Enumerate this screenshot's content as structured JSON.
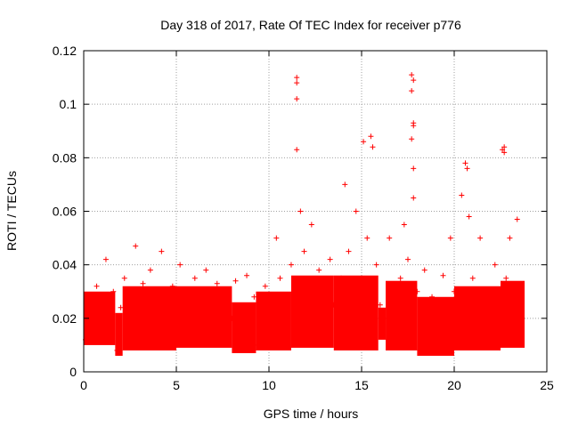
{
  "chart_data": {
    "type": "scatter",
    "title": "Day 318 of 2017, Rate Of TEC Index for receiver p776",
    "xlabel": "GPS time / hours",
    "ylabel": "ROTI / TECUs",
    "xlim": [
      0,
      25
    ],
    "ylim": [
      0,
      0.12
    ],
    "xticks": [
      0,
      5,
      10,
      15,
      20,
      25
    ],
    "xtick_labels": [
      "0",
      "5",
      "10",
      "15",
      "20",
      "25"
    ],
    "yticks": [
      0,
      0.02,
      0.04,
      0.06,
      0.08,
      0.1,
      0.12
    ],
    "ytick_labels": [
      "0",
      "0.02",
      "0.04",
      "0.06",
      "0.08",
      "0.1",
      "0.12"
    ],
    "grid": true,
    "marker": "+",
    "series_color": "#ff0000",
    "series": [
      {
        "name": "ROTI",
        "points": [
          [
            0.1,
            0.012
          ],
          [
            0.3,
            0.028
          ],
          [
            0.5,
            0.02
          ],
          [
            0.7,
            0.032
          ],
          [
            0.9,
            0.015
          ],
          [
            1.1,
            0.022
          ],
          [
            1.2,
            0.042
          ],
          [
            1.4,
            0.018
          ],
          [
            1.6,
            0.03
          ],
          [
            1.8,
            0.008
          ],
          [
            2.0,
            0.024
          ],
          [
            2.2,
            0.035
          ],
          [
            2.4,
            0.016
          ],
          [
            2.6,
            0.028
          ],
          [
            2.8,
            0.047
          ],
          [
            3.0,
            0.02
          ],
          [
            3.2,
            0.033
          ],
          [
            3.4,
            0.012
          ],
          [
            3.6,
            0.038
          ],
          [
            3.8,
            0.025
          ],
          [
            4.0,
            0.018
          ],
          [
            4.2,
            0.045
          ],
          [
            4.4,
            0.028
          ],
          [
            4.6,
            0.015
          ],
          [
            4.8,
            0.032
          ],
          [
            5.0,
            0.022
          ],
          [
            5.2,
            0.04
          ],
          [
            5.4,
            0.012
          ],
          [
            5.6,
            0.03
          ],
          [
            5.8,
            0.02
          ],
          [
            6.0,
            0.035
          ],
          [
            6.2,
            0.016
          ],
          [
            6.4,
            0.028
          ],
          [
            6.6,
            0.038
          ],
          [
            6.8,
            0.022
          ],
          [
            7.0,
            0.014
          ],
          [
            7.2,
            0.033
          ],
          [
            7.4,
            0.026
          ],
          [
            7.6,
            0.018
          ],
          [
            7.8,
            0.03
          ],
          [
            8.0,
            0.02
          ],
          [
            8.2,
            0.034
          ],
          [
            8.4,
            0.012
          ],
          [
            8.6,
            0.024
          ],
          [
            8.8,
            0.036
          ],
          [
            9.0,
            0.018
          ],
          [
            9.2,
            0.028
          ],
          [
            9.4,
            0.01
          ],
          [
            9.6,
            0.022
          ],
          [
            9.8,
            0.032
          ],
          [
            10.0,
            0.016
          ],
          [
            10.2,
            0.025
          ],
          [
            10.4,
            0.05
          ],
          [
            10.6,
            0.035
          ],
          [
            10.8,
            0.02
          ],
          [
            11.0,
            0.028
          ],
          [
            11.2,
            0.04
          ],
          [
            11.5,
            0.11
          ],
          [
            11.5,
            0.108
          ],
          [
            11.5,
            0.102
          ],
          [
            11.5,
            0.083
          ],
          [
            11.7,
            0.06
          ],
          [
            11.9,
            0.045
          ],
          [
            12.1,
            0.03
          ],
          [
            12.3,
            0.055
          ],
          [
            12.5,
            0.022
          ],
          [
            12.7,
            0.038
          ],
          [
            12.9,
            0.018
          ],
          [
            13.1,
            0.03
          ],
          [
            13.3,
            0.042
          ],
          [
            13.5,
            0.025
          ],
          [
            13.7,
            0.015
          ],
          [
            13.9,
            0.035
          ],
          [
            14.1,
            0.07
          ],
          [
            14.3,
            0.045
          ],
          [
            14.5,
            0.02
          ],
          [
            14.7,
            0.06
          ],
          [
            14.9,
            0.03
          ],
          [
            15.1,
            0.086
          ],
          [
            15.3,
            0.05
          ],
          [
            15.5,
            0.088
          ],
          [
            15.6,
            0.084
          ],
          [
            15.8,
            0.04
          ],
          [
            16.0,
            0.025
          ],
          [
            16.2,
            0.02
          ],
          [
            16.5,
            0.05
          ],
          [
            16.7,
            0.03
          ],
          [
            16.9,
            0.018
          ],
          [
            17.1,
            0.035
          ],
          [
            17.3,
            0.055
          ],
          [
            17.5,
            0.042
          ],
          [
            17.7,
            0.111
          ],
          [
            17.8,
            0.109
          ],
          [
            17.7,
            0.105
          ],
          [
            17.8,
            0.093
          ],
          [
            17.8,
            0.092
          ],
          [
            17.7,
            0.087
          ],
          [
            17.8,
            0.076
          ],
          [
            17.8,
            0.065
          ],
          [
            18.0,
            0.03
          ],
          [
            18.2,
            0.02
          ],
          [
            18.4,
            0.038
          ],
          [
            18.6,
            0.015
          ],
          [
            18.8,
            0.028
          ],
          [
            19.0,
            0.012
          ],
          [
            19.2,
            0.024
          ],
          [
            19.4,
            0.036
          ],
          [
            19.6,
            0.02
          ],
          [
            19.8,
            0.05
          ],
          [
            20.0,
            0.03
          ],
          [
            20.2,
            0.018
          ],
          [
            20.4,
            0.066
          ],
          [
            20.6,
            0.078
          ],
          [
            20.7,
            0.076
          ],
          [
            20.8,
            0.058
          ],
          [
            21.0,
            0.035
          ],
          [
            21.2,
            0.022
          ],
          [
            21.4,
            0.05
          ],
          [
            21.6,
            0.03
          ],
          [
            21.8,
            0.015
          ],
          [
            22.0,
            0.028
          ],
          [
            22.2,
            0.04
          ],
          [
            22.4,
            0.02
          ],
          [
            22.6,
            0.083
          ],
          [
            22.7,
            0.084
          ],
          [
            22.7,
            0.082
          ],
          [
            22.8,
            0.035
          ],
          [
            23.0,
            0.05
          ],
          [
            23.2,
            0.025
          ],
          [
            23.4,
            0.057
          ],
          [
            23.6,
            0.02
          ]
        ]
      }
    ],
    "band_segments": [
      [
        0.0,
        1.7,
        0.01,
        0.03
      ],
      [
        1.7,
        2.1,
        0.006,
        0.022
      ],
      [
        2.1,
        5.0,
        0.008,
        0.032
      ],
      [
        5.0,
        8.0,
        0.009,
        0.032
      ],
      [
        8.0,
        9.3,
        0.007,
        0.026
      ],
      [
        9.3,
        11.2,
        0.008,
        0.03
      ],
      [
        11.2,
        13.5,
        0.009,
        0.036
      ],
      [
        13.5,
        15.9,
        0.008,
        0.036
      ],
      [
        15.9,
        16.3,
        0.012,
        0.024
      ],
      [
        16.3,
        18.0,
        0.008,
        0.034
      ],
      [
        18.0,
        20.0,
        0.006,
        0.028
      ],
      [
        20.0,
        22.5,
        0.008,
        0.032
      ],
      [
        22.5,
        23.8,
        0.009,
        0.034
      ]
    ]
  }
}
